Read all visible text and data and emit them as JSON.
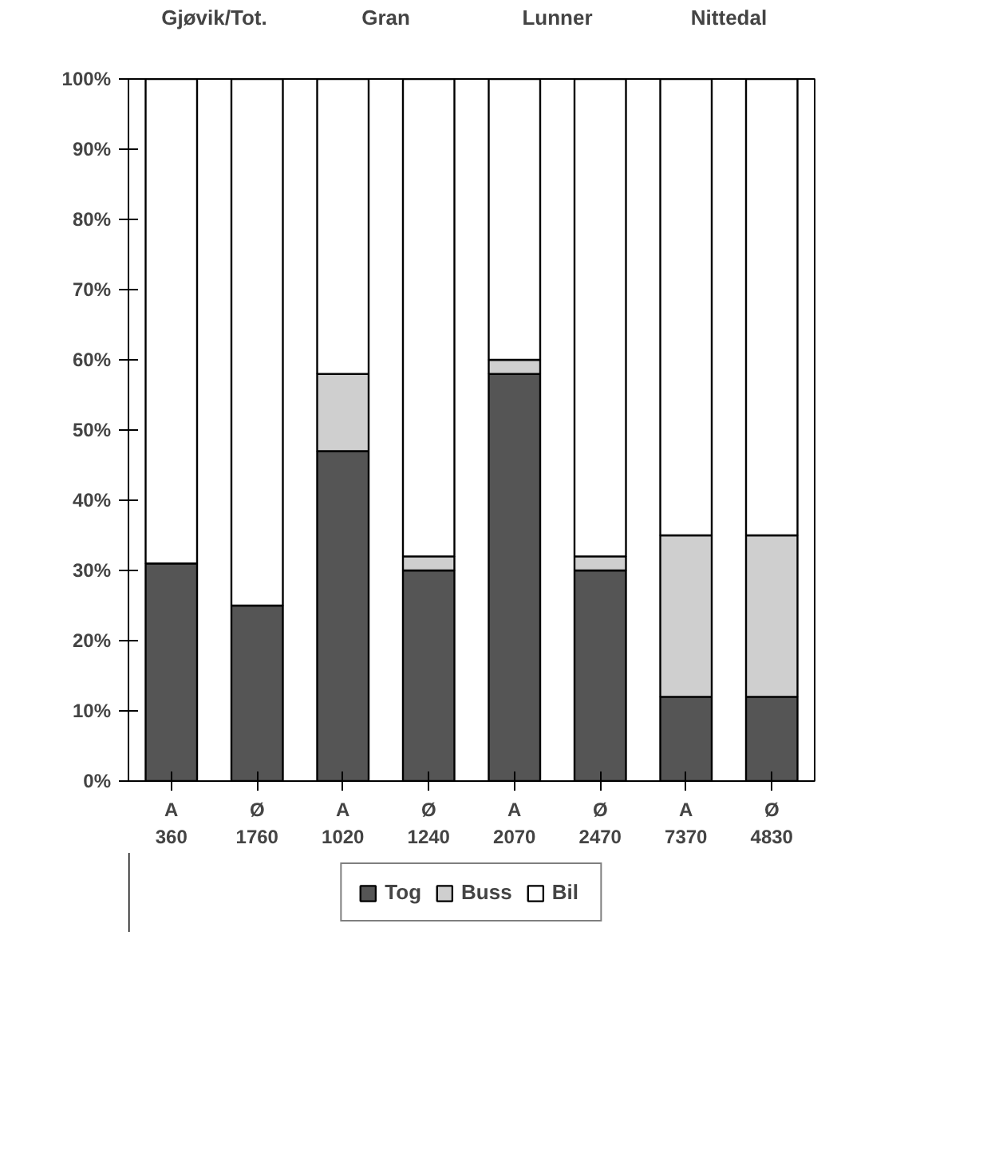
{
  "chart_data": {
    "type": "bar",
    "stacked": true,
    "categories": [
      "A\n360",
      "Ø\n1760",
      "A\n1020",
      "Ø\n1240",
      "A\n2070",
      "Ø\n2470",
      "A\n7370",
      "Ø\n4830"
    ],
    "series": [
      {
        "name": "Tog",
        "color": "#555555",
        "values": [
          31,
          25,
          47,
          30,
          58,
          30,
          12,
          12
        ]
      },
      {
        "name": "Buss",
        "color": "#cfcfcf",
        "values": [
          null,
          null,
          11,
          2,
          2,
          2,
          23,
          23
        ]
      },
      {
        "name": "Bil",
        "color": "#ffffff",
        "values": [
          69,
          75,
          42,
          68,
          40,
          68,
          65,
          65
        ]
      }
    ],
    "ylim": [
      0,
      100
    ],
    "yticks": [
      {
        "value": 0,
        "label": "0%"
      },
      {
        "value": 10,
        "label": "10%"
      },
      {
        "value": 20,
        "label": "20%"
      },
      {
        "value": 30,
        "label": "30%"
      },
      {
        "value": 40,
        "label": "40%"
      },
      {
        "value": 50,
        "label": "50%"
      },
      {
        "value": 60,
        "label": "60%"
      },
      {
        "value": 70,
        "label": "70%"
      },
      {
        "value": 80,
        "label": "80%"
      },
      {
        "value": 90,
        "label": "90%"
      },
      {
        "value": 100,
        "label": "100%"
      }
    ],
    "annotations": [
      "Gjøvik/Tot.",
      "Gran",
      "Lunner",
      "Nittedal"
    ],
    "legend": "bottom",
    "grid": false
  }
}
